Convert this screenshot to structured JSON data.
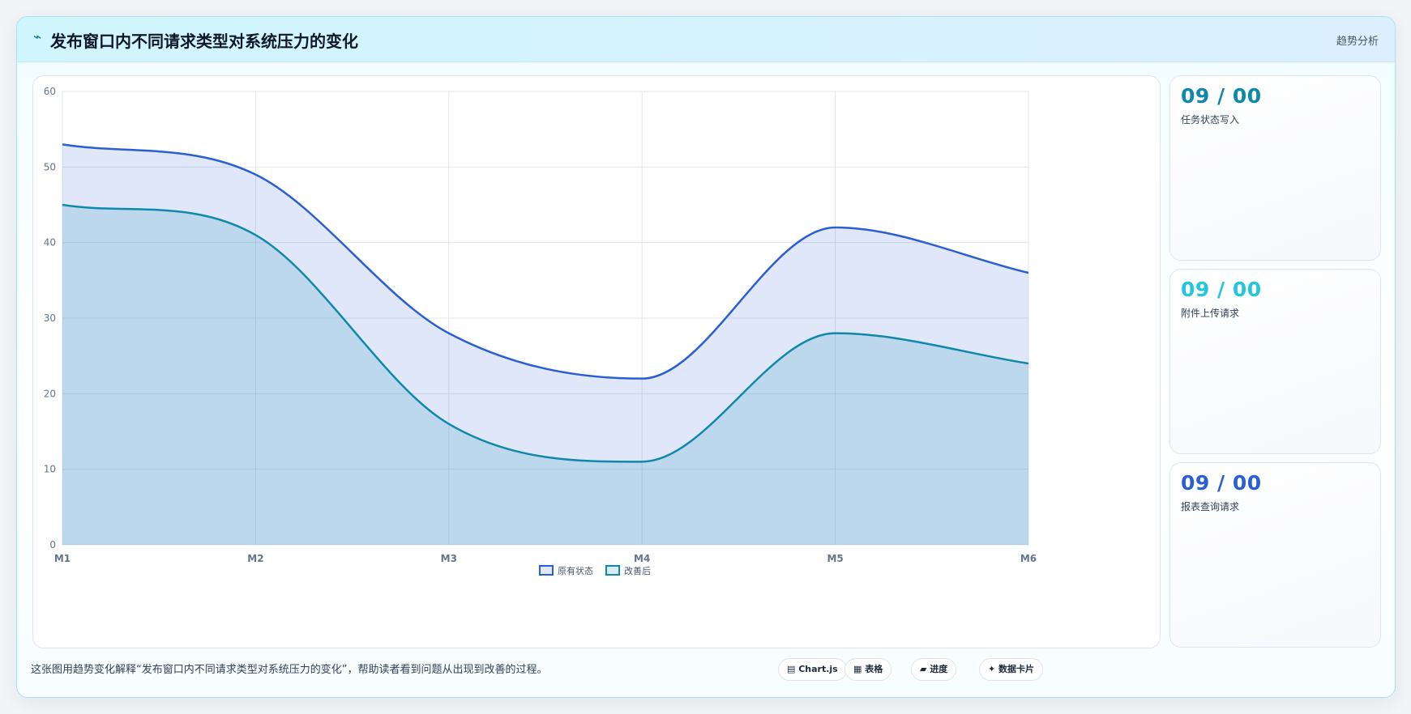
{
  "header": {
    "title": "发布窗口内不同请求类型对系统压力的变化",
    "tag": "趋势分析",
    "icon": "bolt-icon"
  },
  "colors": {
    "original": "#2a5fd4",
    "improved": "#0e88ad",
    "card1": "#0e88ad",
    "card2": "#22c7de",
    "card3": "#2a5fd4"
  },
  "chart_data": {
    "type": "area",
    "x": [
      "M1",
      "M2",
      "M3",
      "M4",
      "M5",
      "M6"
    ],
    "ylim": [
      0,
      60
    ],
    "yticks": [
      "0",
      "10",
      "20",
      "30",
      "40",
      "50",
      "60"
    ],
    "grid": true,
    "legend_position": "bottom",
    "series": [
      {
        "name": "原有状态",
        "values": [
          53,
          49,
          28,
          22,
          42,
          36
        ]
      },
      {
        "name": "改善后",
        "values": [
          45,
          41,
          16,
          11,
          28,
          24
        ]
      }
    ]
  },
  "stats": [
    {
      "value": "09 / 00",
      "label": "任务状态写入"
    },
    {
      "value": "09 / 00",
      "label": "附件上传请求"
    },
    {
      "value": "09 / 00",
      "label": "报表查询请求"
    }
  ],
  "footer": {
    "note": "这张图用趋势变化解释“发布窗口内不同请求类型对系统压力的变化”，帮助读者看到问题从出现到改善的过程。",
    "pills": [
      "▤ Chart.js",
      "▦ 表格",
      "▰ 进度",
      "✦ 数据卡片"
    ]
  }
}
